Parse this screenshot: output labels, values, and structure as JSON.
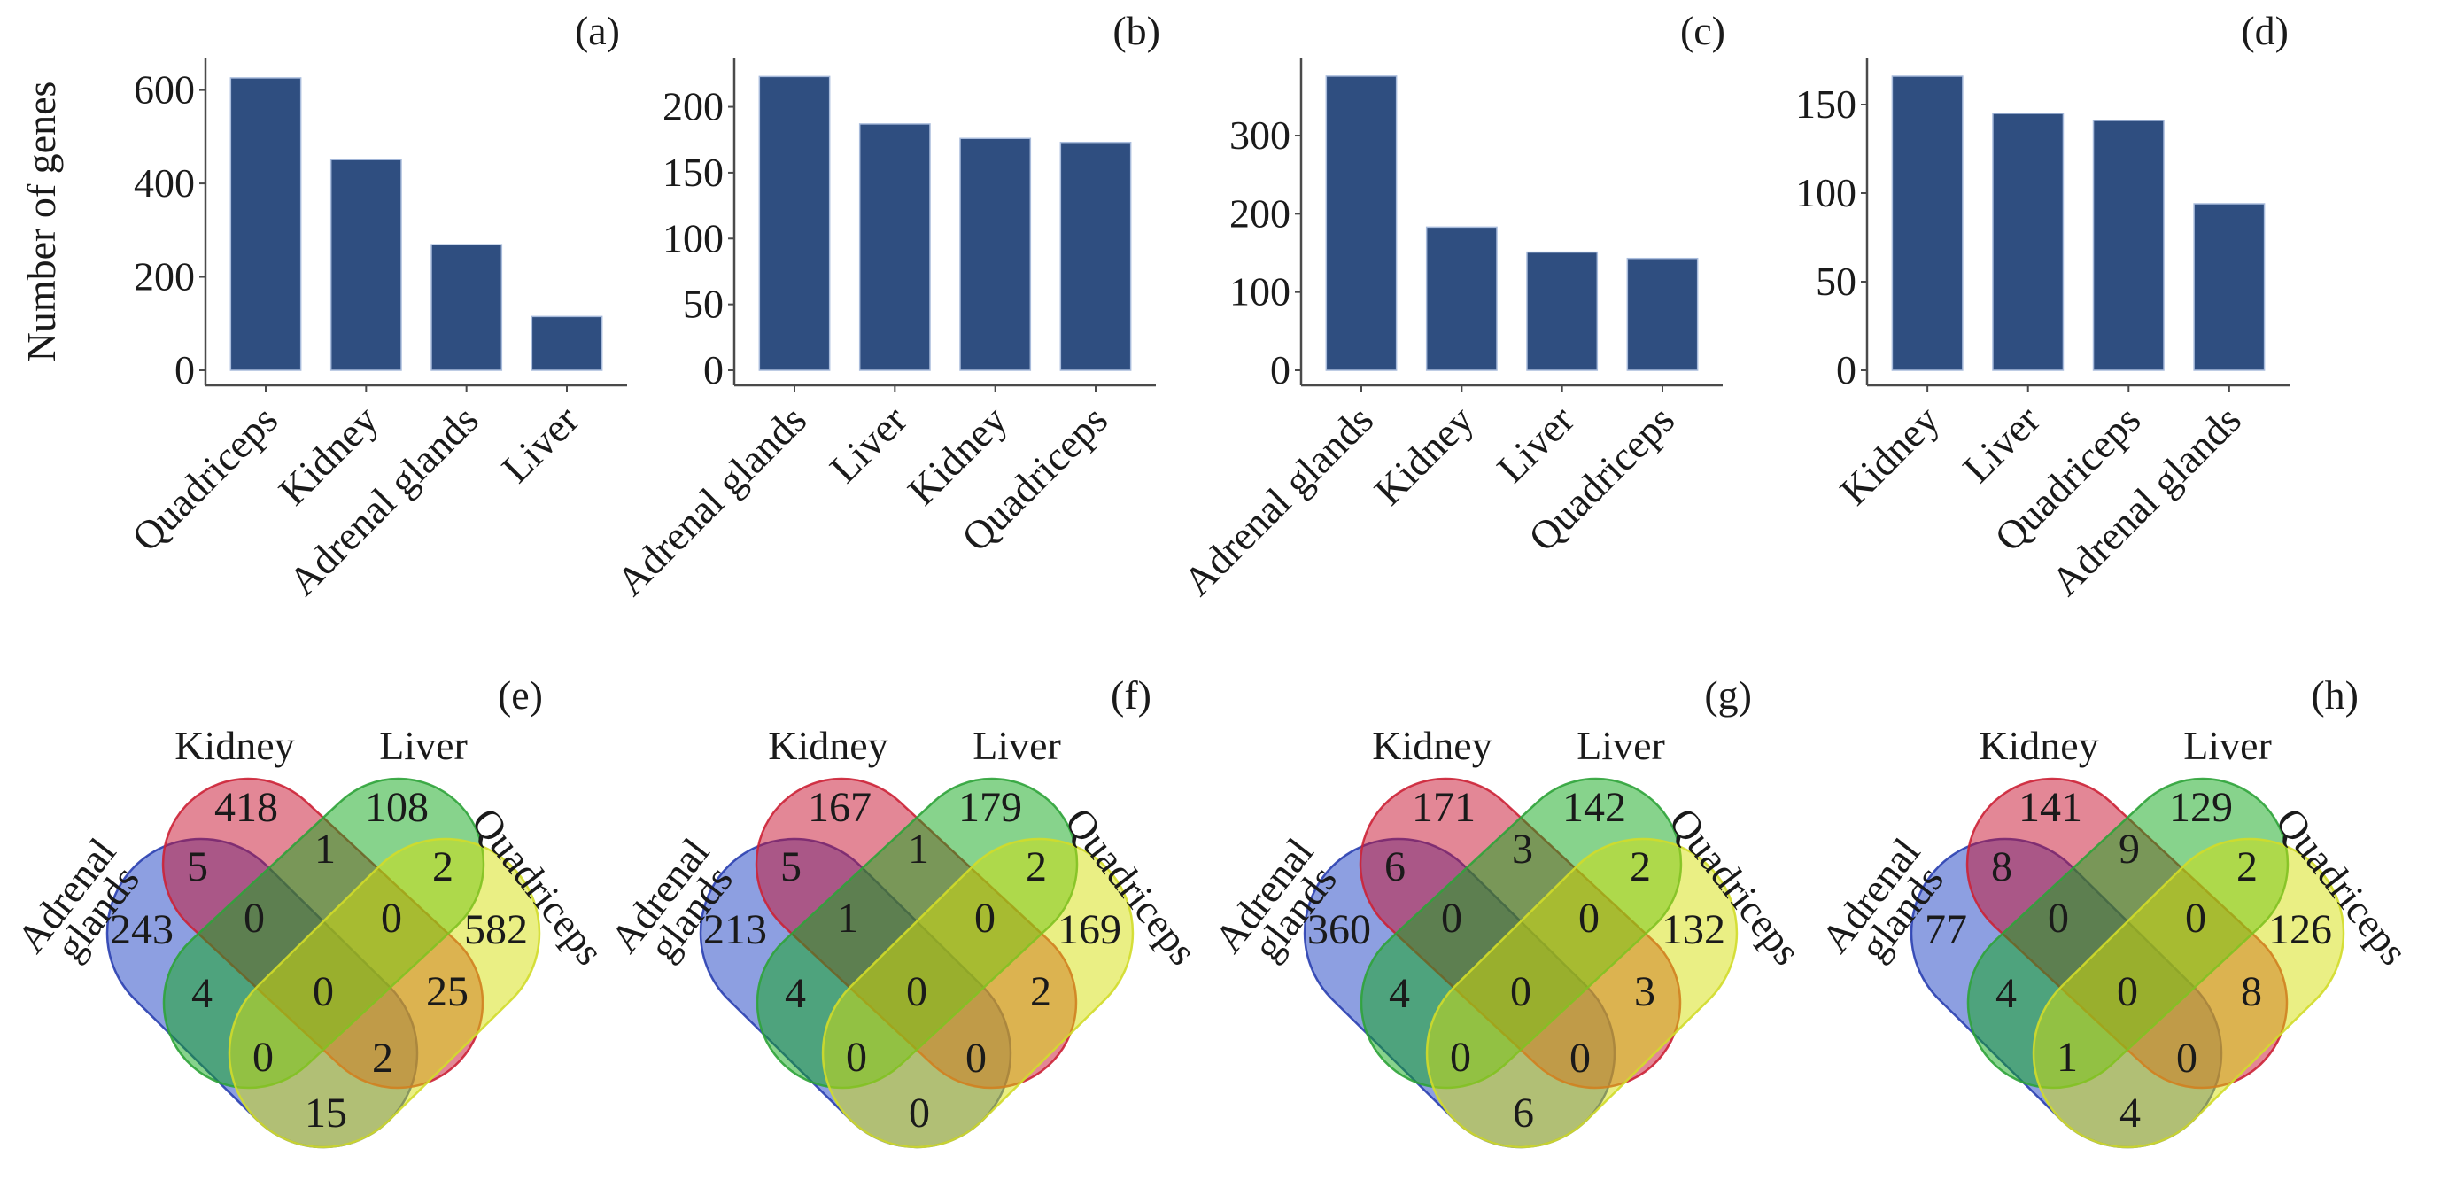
{
  "figure": {
    "bar_color": "#2f4e80",
    "venn_colors": {
      "Adrenal glands": "#1b3fc4",
      "Kidney": "#c8102e",
      "Liver": "#10a81a",
      "Quadriceps": "#d6e00a"
    }
  },
  "chart_data": [
    {
      "panel": "(a)",
      "type": "bar",
      "title": "",
      "xlabel": "",
      "ylabel": "Number of genes",
      "categories": [
        "Quadriceps",
        "Kidney",
        "Adrenal glands",
        "Liver"
      ],
      "values": [
        626,
        451,
        269,
        115
      ],
      "ylim": [
        0,
        660
      ],
      "yticks": [
        0,
        200,
        400,
        600
      ],
      "grid": false
    },
    {
      "panel": "(b)",
      "type": "bar",
      "title": "",
      "xlabel": "",
      "ylabel": "",
      "categories": [
        "Adrenal glands",
        "Liver",
        "Kidney",
        "Quadriceps"
      ],
      "values": [
        223,
        187,
        176,
        173
      ],
      "ylim": [
        0,
        234
      ],
      "yticks": [
        0,
        50,
        100,
        150,
        200
      ],
      "grid": false
    },
    {
      "panel": "(c)",
      "type": "bar",
      "title": "",
      "xlabel": "",
      "ylabel": "",
      "categories": [
        "Adrenal glands",
        "Kidney",
        "Liver",
        "Quadriceps"
      ],
      "values": [
        376,
        183,
        151,
        143
      ],
      "ylim": [
        0,
        394
      ],
      "yticks": [
        0,
        100,
        200,
        300
      ],
      "grid": false
    },
    {
      "panel": "(d)",
      "type": "bar",
      "title": "",
      "xlabel": "",
      "ylabel": "",
      "categories": [
        "Kidney",
        "Liver",
        "Quadriceps",
        "Adrenal glands"
      ],
      "values": [
        166,
        145,
        141,
        94
      ],
      "ylim": [
        0,
        174
      ],
      "yticks": [
        0,
        50,
        100,
        150
      ],
      "grid": false
    },
    {
      "panel": "(e)",
      "type": "venn",
      "sets": [
        "Adrenal glands",
        "Kidney",
        "Liver",
        "Quadriceps"
      ],
      "set_labels": {
        "A": "Adrenal glands",
        "A_line1": "Adrenal",
        "A_line2": "glands",
        "K": "Kidney",
        "L": "Liver",
        "Q": "Quadriceps"
      },
      "regions": {
        "A": 243,
        "K": 418,
        "L": 108,
        "Q": 582,
        "AK": 5,
        "KL": 1,
        "LQ": 2,
        "AKL": 0,
        "KLQ": 0,
        "AL": 4,
        "AKLQ": 0,
        "KQ": 25,
        "ALQ": 0,
        "AKQ": 2,
        "AQ": 15
      }
    },
    {
      "panel": "(f)",
      "type": "venn",
      "sets": [
        "Adrenal glands",
        "Kidney",
        "Liver",
        "Quadriceps"
      ],
      "set_labels": {
        "A": "Adrenal glands",
        "A_line1": "Adrenal",
        "A_line2": "glands",
        "K": "Kidney",
        "L": "Liver",
        "Q": "Quadriceps"
      },
      "regions": {
        "A": 213,
        "K": 167,
        "L": 179,
        "Q": 169,
        "AK": 5,
        "KL": 1,
        "LQ": 2,
        "AKL": 1,
        "KLQ": 0,
        "AL": 4,
        "AKLQ": 0,
        "KQ": 2,
        "ALQ": 0,
        "AKQ": 0,
        "AQ": 0
      }
    },
    {
      "panel": "(g)",
      "type": "venn",
      "sets": [
        "Adrenal glands",
        "Kidney",
        "Liver",
        "Quadriceps"
      ],
      "set_labels": {
        "A": "Adrenal glands",
        "A_line1": "Adrenal",
        "A_line2": "glands",
        "K": "Kidney",
        "L": "Liver",
        "Q": "Quadriceps"
      },
      "regions": {
        "A": 360,
        "K": 171,
        "L": 142,
        "Q": 132,
        "AK": 6,
        "KL": 3,
        "LQ": 2,
        "AKL": 0,
        "KLQ": 0,
        "AL": 4,
        "AKLQ": 0,
        "KQ": 3,
        "ALQ": 0,
        "AKQ": 0,
        "AQ": 6
      }
    },
    {
      "panel": "(h)",
      "type": "venn",
      "sets": [
        "Adrenal glands",
        "Kidney",
        "Liver",
        "Quadriceps"
      ],
      "set_labels": {
        "A": "Adrenal glands",
        "A_line1": "Adrenal",
        "A_line2": "glands",
        "K": "Kidney",
        "L": "Liver",
        "Q": "Quadriceps"
      },
      "regions": {
        "A": 77,
        "K": 141,
        "L": 129,
        "Q": 126,
        "AK": 8,
        "KL": 9,
        "LQ": 2,
        "AKL": 0,
        "KLQ": 0,
        "AL": 4,
        "AKLQ": 0,
        "KQ": 8,
        "ALQ": 1,
        "AKQ": 0,
        "AQ": 4
      }
    }
  ]
}
